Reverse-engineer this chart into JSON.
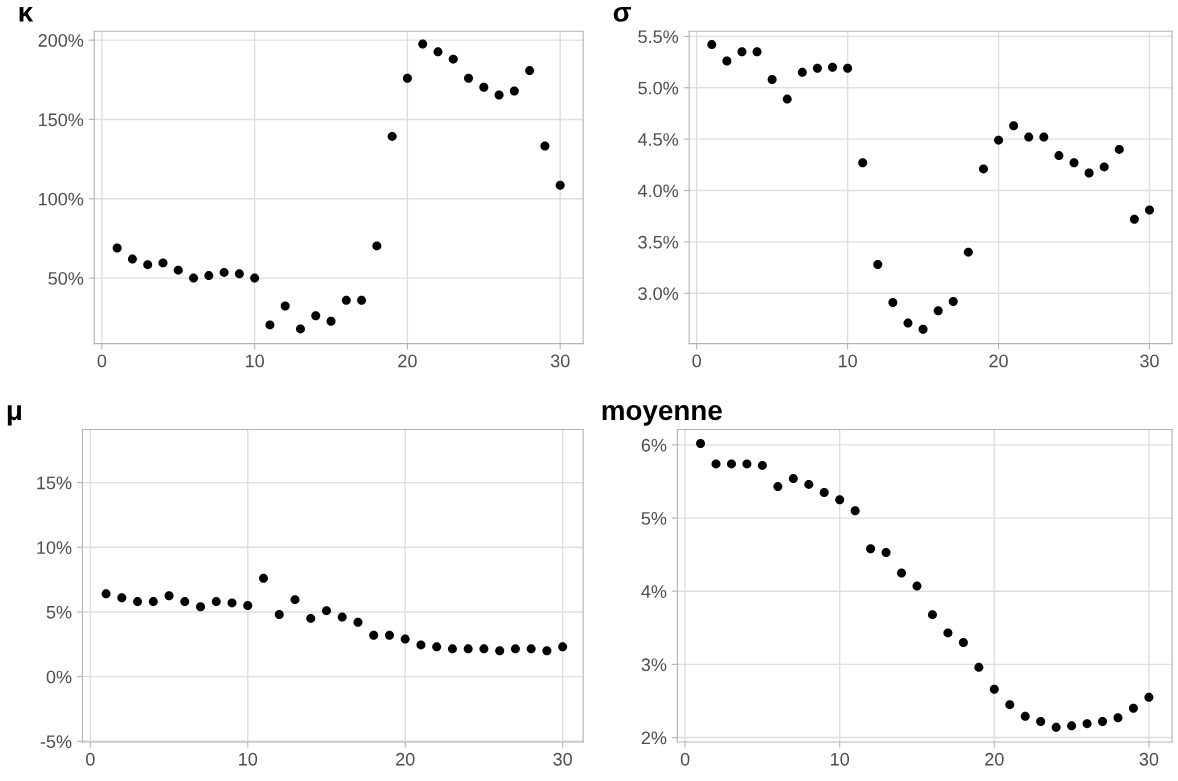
{
  "chart_data": [
    {
      "type": "scatter",
      "title": "κ",
      "marker": "circle",
      "grid": true,
      "x": [
        1,
        2,
        3,
        4,
        5,
        6,
        7,
        8,
        9,
        10,
        11,
        12,
        13,
        14,
        15,
        16,
        17,
        18,
        19,
        20,
        21,
        22,
        23,
        24,
        25,
        26,
        27,
        28,
        29,
        30
      ],
      "series": [
        {
          "color": "#000000",
          "values": [
            69,
            62,
            58.5,
            59.6,
            55,
            50,
            51.6,
            53.6,
            52.7,
            50,
            20.5,
            32.4,
            18,
            26.3,
            22.8,
            36,
            36,
            70.3,
            139.3,
            176,
            197.5,
            192.6,
            188,
            176,
            170.3,
            165.4,
            167.9,
            180.8,
            133.3,
            108.5
          ]
        }
      ],
      "xlim": [
        -0.5,
        31.5
      ],
      "xticks": [
        0,
        10,
        20,
        30
      ],
      "ylim": [
        8.7,
        205.6
      ],
      "yticks": [
        {
          "value": 50,
          "label": "50%"
        },
        {
          "value": 100,
          "label": "100%"
        },
        {
          "value": 150,
          "label": "150%"
        },
        {
          "value": 200,
          "label": "200%"
        }
      ]
    },
    {
      "type": "scatter",
      "title": "σ",
      "marker": "circle",
      "grid": true,
      "x": [
        1,
        2,
        3,
        4,
        5,
        6,
        7,
        8,
        9,
        10,
        11,
        12,
        13,
        14,
        15,
        16,
        17,
        18,
        19,
        20,
        21,
        22,
        23,
        24,
        25,
        26,
        27,
        28,
        29,
        30
      ],
      "series": [
        {
          "color": "#000000",
          "values": [
            5.42,
            5.26,
            5.35,
            5.35,
            5.08,
            4.89,
            5.15,
            5.19,
            5.2,
            5.19,
            4.27,
            3.28,
            2.91,
            2.71,
            2.65,
            2.83,
            2.92,
            3.4,
            4.21,
            4.49,
            4.63,
            4.52,
            4.52,
            4.34,
            4.27,
            4.17,
            4.23,
            4.4,
            3.72,
            3.81
          ]
        }
      ],
      "xlim": [
        -0.5,
        31.5
      ],
      "xticks": [
        0,
        10,
        20,
        30
      ],
      "ylim": [
        2.51,
        5.55
      ],
      "yticks": [
        {
          "value": 3.0,
          "label": "3.0%"
        },
        {
          "value": 3.5,
          "label": "3.5%"
        },
        {
          "value": 4.0,
          "label": "4.0%"
        },
        {
          "value": 4.5,
          "label": "4.5%"
        },
        {
          "value": 5.0,
          "label": "5.0%"
        },
        {
          "value": 5.5,
          "label": "5.5%"
        }
      ]
    },
    {
      "type": "scatter",
      "title": "μ",
      "marker": "circle",
      "grid": true,
      "x": [
        1,
        2,
        3,
        4,
        5,
        6,
        7,
        8,
        9,
        10,
        11,
        12,
        13,
        14,
        15,
        16,
        17,
        18,
        19,
        20,
        21,
        22,
        23,
        24,
        25,
        26,
        27,
        28,
        29,
        30
      ],
      "series": [
        {
          "color": "#000000",
          "values": [
            6.4,
            6.1,
            5.8,
            5.8,
            6.25,
            5.8,
            5.4,
            5.8,
            5.7,
            5.5,
            7.6,
            4.8,
            5.95,
            4.5,
            5.1,
            4.6,
            4.2,
            3.2,
            3.2,
            2.9,
            2.45,
            2.3,
            2.15,
            2.15,
            2.15,
            2.0,
            2.15,
            2.15,
            2.0,
            2.3
          ]
        }
      ],
      "xlim": [
        -0.5,
        31.3
      ],
      "xticks": [
        0,
        10,
        20,
        30
      ],
      "ylim": [
        -5.05,
        19.1
      ],
      "yticks": [
        {
          "value": -5,
          "label": "-5%"
        },
        {
          "value": 0,
          "label": "0%"
        },
        {
          "value": 5,
          "label": "5%"
        },
        {
          "value": 10,
          "label": "10%"
        },
        {
          "value": 15,
          "label": "15%"
        }
      ]
    },
    {
      "type": "scatter",
      "title": "moyenne",
      "marker": "circle",
      "grid": true,
      "x": [
        1,
        2,
        3,
        4,
        5,
        6,
        7,
        8,
        9,
        10,
        11,
        12,
        13,
        14,
        15,
        16,
        17,
        18,
        19,
        20,
        21,
        22,
        23,
        24,
        25,
        26,
        27,
        28,
        29,
        30
      ],
      "series": [
        {
          "color": "#000000",
          "values": [
            6.02,
            5.74,
            5.74,
            5.74,
            5.72,
            5.43,
            5.54,
            5.46,
            5.35,
            5.25,
            5.1,
            4.58,
            4.53,
            4.25,
            4.07,
            3.68,
            3.43,
            3.3,
            2.96,
            2.66,
            2.45,
            2.29,
            2.22,
            2.14,
            2.16,
            2.19,
            2.22,
            2.27,
            2.4,
            2.55
          ]
        }
      ],
      "xlim": [
        -0.5,
        31.5
      ],
      "xticks": [
        0,
        10,
        20,
        30
      ],
      "ylim": [
        1.94,
        6.21
      ],
      "yticks": [
        {
          "value": 2,
          "label": "2%"
        },
        {
          "value": 3,
          "label": "3%"
        },
        {
          "value": 4,
          "label": "4%"
        },
        {
          "value": 5,
          "label": "5%"
        },
        {
          "value": 6,
          "label": "6%"
        }
      ]
    }
  ]
}
